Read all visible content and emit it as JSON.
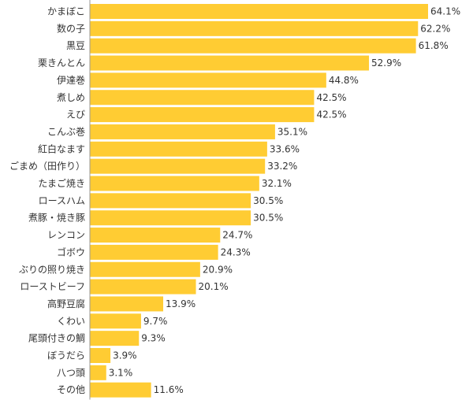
{
  "chart_data": {
    "type": "bar",
    "orientation": "horizontal",
    "categories": [
      "かまぼこ",
      "数の子",
      "黒豆",
      "栗きんとん",
      "伊達巻",
      "煮しめ",
      "えび",
      "こんぶ巻",
      "紅白なます",
      "ごまめ（田作り）",
      "たまご焼き",
      "ロースハム",
      "煮豚・焼き豚",
      "レンコン",
      "ゴボウ",
      "ぶりの照り焼き",
      "ローストビーフ",
      "高野豆腐",
      "くわい",
      "尾頭付きの鯛",
      "ぼうだら",
      "八つ頭",
      "その他"
    ],
    "values": [
      64.1,
      62.2,
      61.8,
      52.9,
      44.8,
      42.5,
      42.5,
      35.1,
      33.6,
      33.2,
      32.1,
      30.5,
      30.5,
      24.7,
      24.3,
      20.9,
      20.1,
      13.9,
      9.7,
      9.3,
      3.9,
      3.1,
      11.6
    ],
    "value_labels": [
      "64.1%",
      "62.2%",
      "61.8%",
      "52.9%",
      "44.8%",
      "42.5%",
      "42.5%",
      "35.1%",
      "33.6%",
      "33.2%",
      "32.1%",
      "30.5%",
      "30.5%",
      "24.7%",
      "24.3%",
      "20.9%",
      "20.1%",
      "13.9%",
      "9.7%",
      "9.3%",
      "3.9%",
      "3.1%",
      "11.6%"
    ],
    "xlim": [
      0,
      70
    ],
    "bar_color": "#FFCC33",
    "grid": false,
    "legend": "none"
  }
}
